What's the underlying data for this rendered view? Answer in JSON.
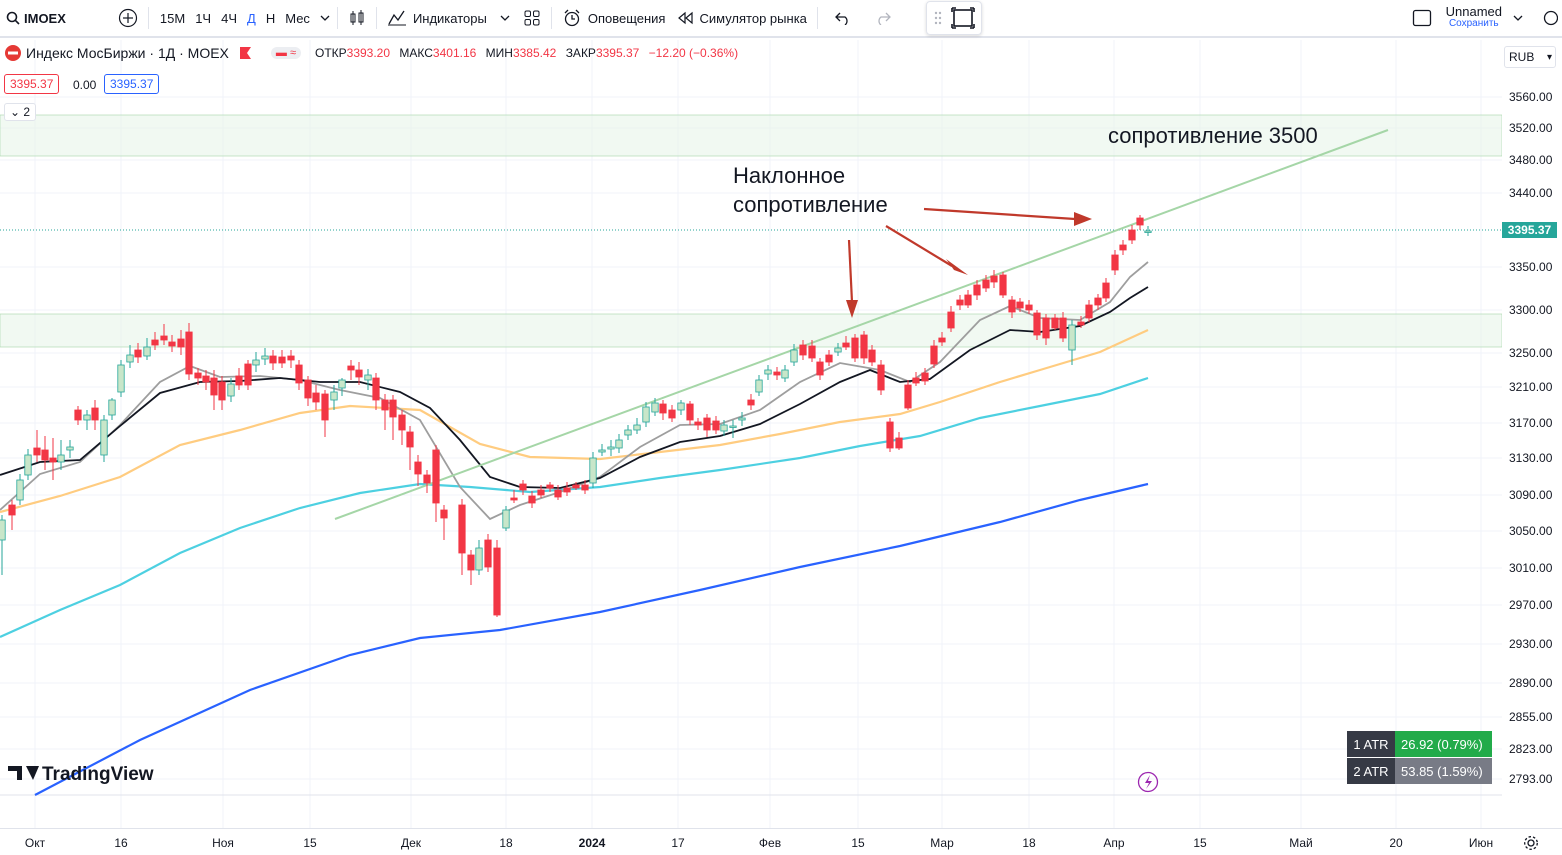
{
  "toolbar": {
    "symbol": "IMOEX",
    "intervals": [
      "15М",
      "1Ч",
      "4Ч",
      "Д",
      "Н",
      "Мес"
    ],
    "indicators_label": "Индикаторы",
    "alerts_label": "Оповещения",
    "replay_label": "Симулятор рынка",
    "layout_name": "Unnamed",
    "save_label": "Сохранить"
  },
  "legend": {
    "title": "Индекс МосБиржи · 1Д · MOEX",
    "open_label": "ОТКР",
    "open": "3393.20",
    "high_label": "МАКС",
    "high": "3401.16",
    "low_label": "МИН",
    "low": "3385.42",
    "close_label": "ЗАКР",
    "close": "3395.37",
    "change": "−12.20 (−0.36%)",
    "bid": "3395.37",
    "spread": "0.00",
    "ask": "3395.37",
    "collapsed_count": "2"
  },
  "currency": "RUB",
  "annotations": {
    "resistance_3500": "сопротивление 3500",
    "sloped_line1": "Наклонное",
    "sloped_line2": "сопротивление"
  },
  "price_axis": [
    "3560.00",
    "3520.00",
    "3480.00",
    "3440.00",
    "3350.00",
    "3300.00",
    "3250.00",
    "3210.00",
    "3170.00",
    "3130.00",
    "3090.00",
    "3050.00",
    "3010.00",
    "2970.00",
    "2930.00",
    "2890.00",
    "2855.00",
    "2823.00",
    "2793.00"
  ],
  "last_price": "3395.37",
  "time_axis": [
    "Окт",
    "16",
    "Ноя",
    "15",
    "Дек",
    "18",
    "2024",
    "17",
    "Фев",
    "15",
    "Мар",
    "18",
    "Апр",
    "15",
    "Май",
    "20",
    "Июн"
  ],
  "atr": [
    {
      "label": "1 ATR",
      "value": "26.92 (0.79%)",
      "color": "#22ab4a"
    },
    {
      "label": "2 ATR",
      "value": "53.85 (1.59%)",
      "color": "#787b86"
    }
  ],
  "brand": "TradingView",
  "colors": {
    "up": "#26a69a",
    "down": "#f23645",
    "accent": "#2962ff"
  }
}
